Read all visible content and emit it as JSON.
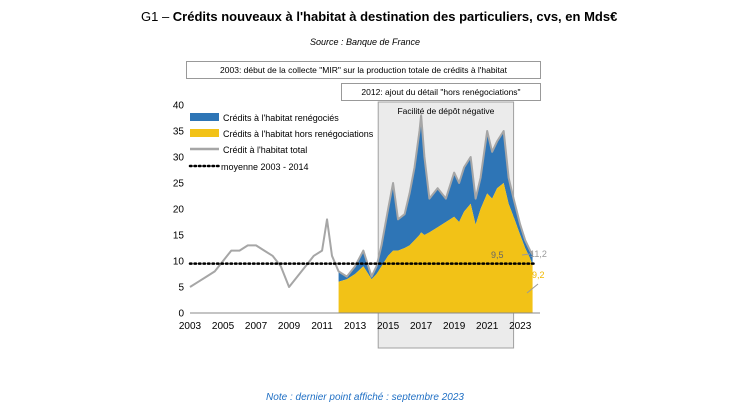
{
  "header": {
    "prefix": "G1 – ",
    "title": "Crédits nouveaux à l'habitat à destination des particuliers, cvs, en Mds€",
    "source": "Source : Banque de France"
  },
  "annotations": {
    "collect_mir": "2003: début de la collecte \"MIR\" sur la production totale de crédits à l'habitat",
    "detail_2012": "2012: ajout du détail \"hors renégociations\"",
    "negative_facility": "Facilité de dépôt négative"
  },
  "footer": {
    "note": "Note : dernier point affiché : septembre 2023"
  },
  "colors": {
    "renegocies": "#2e75b6",
    "hors_reneg": "#f2c217",
    "total": "#a6a6a6",
    "moyenne": "#000000",
    "shade": "#ebebeb",
    "label_hors": "#f0b800"
  },
  "chart_data": {
    "type": "area",
    "ylim": [
      0,
      40
    ],
    "yticks": [
      0,
      5,
      10,
      15,
      20,
      25,
      30,
      35,
      40
    ],
    "xlim": [
      2003,
      2024.2
    ],
    "xticks": [
      2003,
      2005,
      2007,
      2009,
      2011,
      2013,
      2015,
      2017,
      2019,
      2021,
      2023
    ],
    "shaded_period": [
      2014.4,
      2022.6
    ],
    "legend": [
      "Crédits à l'habitat renégociés",
      "Crédits à l'habitat hors renégociations",
      "Crédit à l'habitat total",
      "moyenne 2003 - 2014"
    ],
    "moyenne_2003_2014": 9.5,
    "last_values": {
      "total": "11,2",
      "moyenne": "9,5",
      "hors_renegociations": "9,2"
    },
    "series": [
      {
        "name": "Crédit à l'habitat total",
        "x": [
          2003.0,
          2003.5,
          2004.0,
          2004.5,
          2005.0,
          2005.5,
          2006.0,
          2006.5,
          2007.0,
          2007.5,
          2008.0,
          2008.5,
          2009.0,
          2009.5,
          2010.0,
          2010.5,
          2011.0,
          2011.3,
          2011.6,
          2012.0,
          2012.5,
          2013.0,
          2013.5,
          2014.0,
          2014.3,
          2014.6,
          2015.0,
          2015.3,
          2015.6,
          2016.0,
          2016.3,
          2016.6,
          2016.9,
          2017.0,
          2017.2,
          2017.5,
          2018.0,
          2018.5,
          2019.0,
          2019.3,
          2019.6,
          2020.0,
          2020.3,
          2020.6,
          2021.0,
          2021.3,
          2021.6,
          2022.0,
          2022.3,
          2022.6,
          2023.0,
          2023.3,
          2023.6,
          2023.75
        ],
        "values": [
          5,
          6,
          7,
          8,
          10,
          12,
          12,
          13,
          13,
          12,
          11,
          9,
          5,
          7,
          9,
          11,
          12,
          18,
          11,
          8,
          7,
          9,
          12,
          7,
          9,
          13,
          20,
          25,
          18,
          19,
          23,
          28,
          35,
          38,
          30,
          22,
          24,
          22,
          27,
          25,
          28,
          30,
          22,
          26,
          35,
          31,
          33,
          35,
          26,
          22,
          17,
          14,
          12,
          11.2
        ]
      },
      {
        "name": "Crédits à l'habitat hors renégociations",
        "x": [
          2012.0,
          2012.5,
          2013.0,
          2013.5,
          2014.0,
          2014.3,
          2014.6,
          2015.0,
          2015.3,
          2015.6,
          2016.0,
          2016.3,
          2016.6,
          2016.9,
          2017.0,
          2017.2,
          2017.5,
          2018.0,
          2018.5,
          2019.0,
          2019.3,
          2019.6,
          2020.0,
          2020.3,
          2020.6,
          2021.0,
          2021.3,
          2021.6,
          2022.0,
          2022.3,
          2022.6,
          2023.0,
          2023.3,
          2023.6,
          2023.75
        ],
        "values": [
          6,
          6.5,
          7.5,
          9,
          6.5,
          7.5,
          9,
          11,
          12,
          12,
          12.5,
          13,
          14,
          15,
          15.5,
          15,
          15.5,
          16.5,
          17.5,
          18.5,
          17.5,
          19.5,
          21,
          17,
          20,
          23,
          22,
          24,
          25,
          21,
          18.5,
          15,
          12.5,
          10.5,
          9.2
        ]
      }
    ]
  }
}
